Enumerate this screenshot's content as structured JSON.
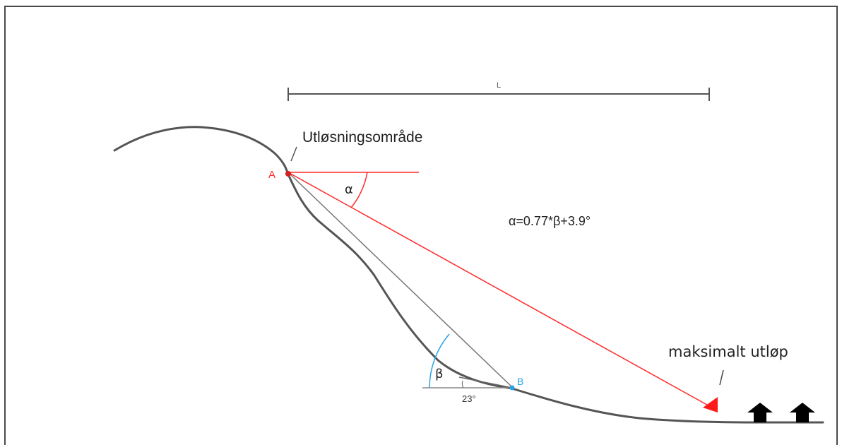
{
  "diagram": {
    "length_label": "L",
    "release_area_label": "Utløsningsområde",
    "point_a_label": "A",
    "point_b_label": "B",
    "alpha_label": "α",
    "beta_label": "β",
    "formula": "α=0.77*β+3.9°",
    "angle_23_label": "23°",
    "max_runout_label": "maksimalt utløp"
  },
  "colors": {
    "terrain": "#555555",
    "red": "#ff2a2a",
    "blue": "#29a3e6",
    "thin_line": "#666666",
    "house": "#000000"
  },
  "icons": [
    "house-icon",
    "house-icon"
  ]
}
